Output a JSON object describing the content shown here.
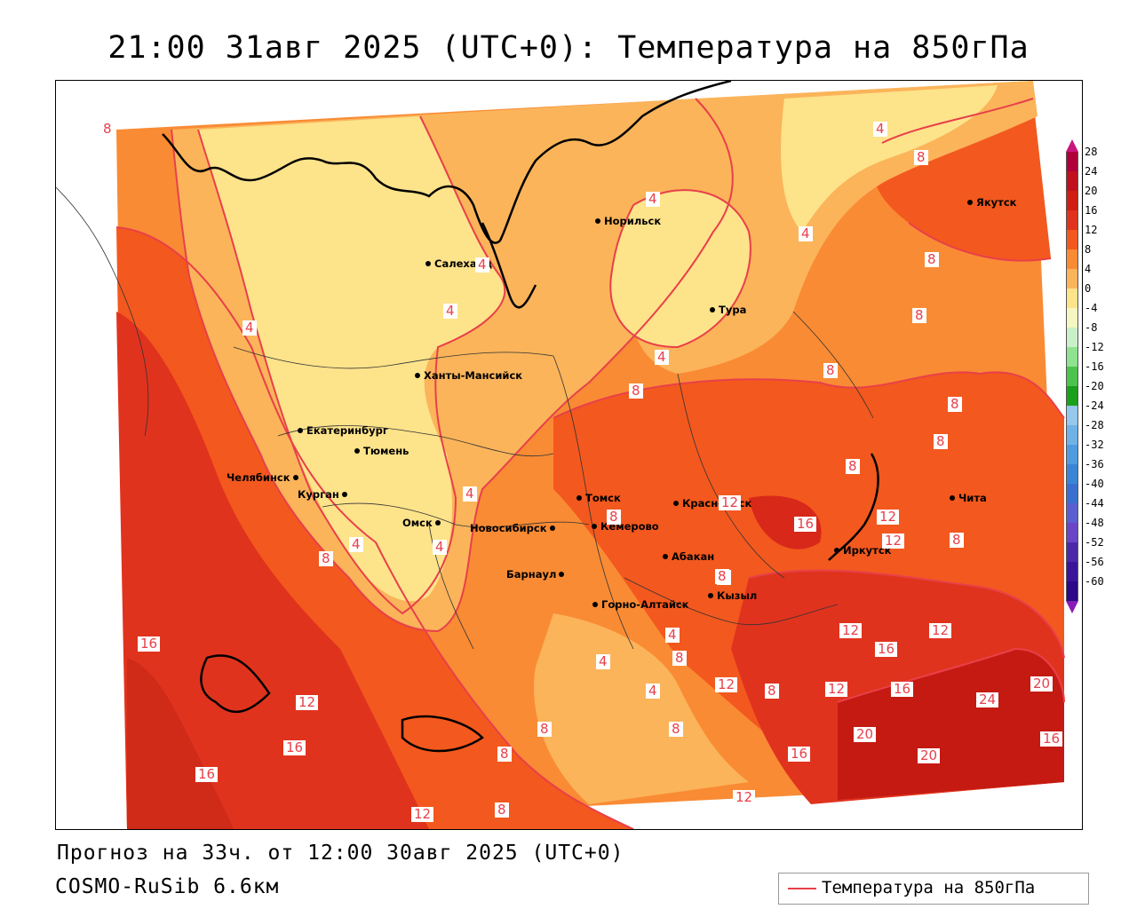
{
  "title": "21:00 31авг 2025 (UTC+0): Температура на 850гПа",
  "footer": {
    "forecast": "Прогноз на 33ч. от 12:00 30авг 2025 (UTC+0)",
    "model": "COSMO-RuSib 6.6км"
  },
  "legend": {
    "label": "Температура на 850гПа",
    "line_color": "#e8404a"
  },
  "colors": {
    "t_20_24": "#c41a12",
    "t_16_20": "#e0331e",
    "t_12_16": "#f3581e",
    "t_8_12": "#f98b34",
    "t_4_8": "#fbb45a",
    "t_0_4": "#fde38a",
    "contour": "#e8404a"
  },
  "colorbar": {
    "ticks": [
      "28",
      "24",
      "20",
      "16",
      "12",
      "8",
      "4",
      "0",
      "-4",
      "-8",
      "-12",
      "-16",
      "-20",
      "-24",
      "-28",
      "-32",
      "-36",
      "-40",
      "-44",
      "-48",
      "-52",
      "-56",
      "-60"
    ],
    "cells": [
      "#b0003a",
      "#c0101e",
      "#d01e12",
      "#e0331e",
      "#f3581e",
      "#f98b34",
      "#fbb45a",
      "#fde38a",
      "#f6f7c0",
      "#c9f0c9",
      "#8fe28f",
      "#4cc44c",
      "#1aa01a",
      "#95c8ec",
      "#6fb2e6",
      "#4f9be0",
      "#3a85d6",
      "#3a6fd0",
      "#5a5ed0",
      "#6a45c6",
      "#4a2aa8",
      "#3a159a",
      "#2a0a88"
    ],
    "top_arrow": "#c8187e",
    "bottom_arrow": "#8a1ab4"
  },
  "cities": [
    {
      "name": "Норильск"
    },
    {
      "name": "Якутск"
    },
    {
      "name": "Салехард"
    },
    {
      "name": "Тура"
    },
    {
      "name": "Ханты-Мансийск"
    },
    {
      "name": "Екатеринбург"
    },
    {
      "name": "Тюмень"
    },
    {
      "name": "Челябинск"
    },
    {
      "name": "Курган"
    },
    {
      "name": "Омск"
    },
    {
      "name": "Новосибирск"
    },
    {
      "name": "Томск"
    },
    {
      "name": "Красноярск"
    },
    {
      "name": "Кемерово"
    },
    {
      "name": "Абакан"
    },
    {
      "name": "Барнаул"
    },
    {
      "name": "Кызыл"
    },
    {
      "name": "Горно-Алтайск"
    },
    {
      "name": "Иркутск"
    },
    {
      "name": "Чита"
    }
  ],
  "contour_labels": [
    "8",
    "4",
    "4",
    "4",
    "8",
    "4",
    "4",
    "8",
    "4",
    "8",
    "8",
    "8",
    "8",
    "8",
    "8",
    "8",
    "4",
    "4",
    "4",
    "8",
    "8",
    "16",
    "12",
    "16",
    "16",
    "12",
    "8",
    "8",
    "8",
    "12",
    "16",
    "12",
    "16",
    "20",
    "24",
    "16",
    "20",
    "20",
    "16",
    "12",
    "12",
    "8",
    "12",
    "8",
    "12",
    "12",
    "8",
    "4",
    "8",
    "4",
    "4",
    "4",
    "4",
    "16",
    "8",
    "12"
  ]
}
